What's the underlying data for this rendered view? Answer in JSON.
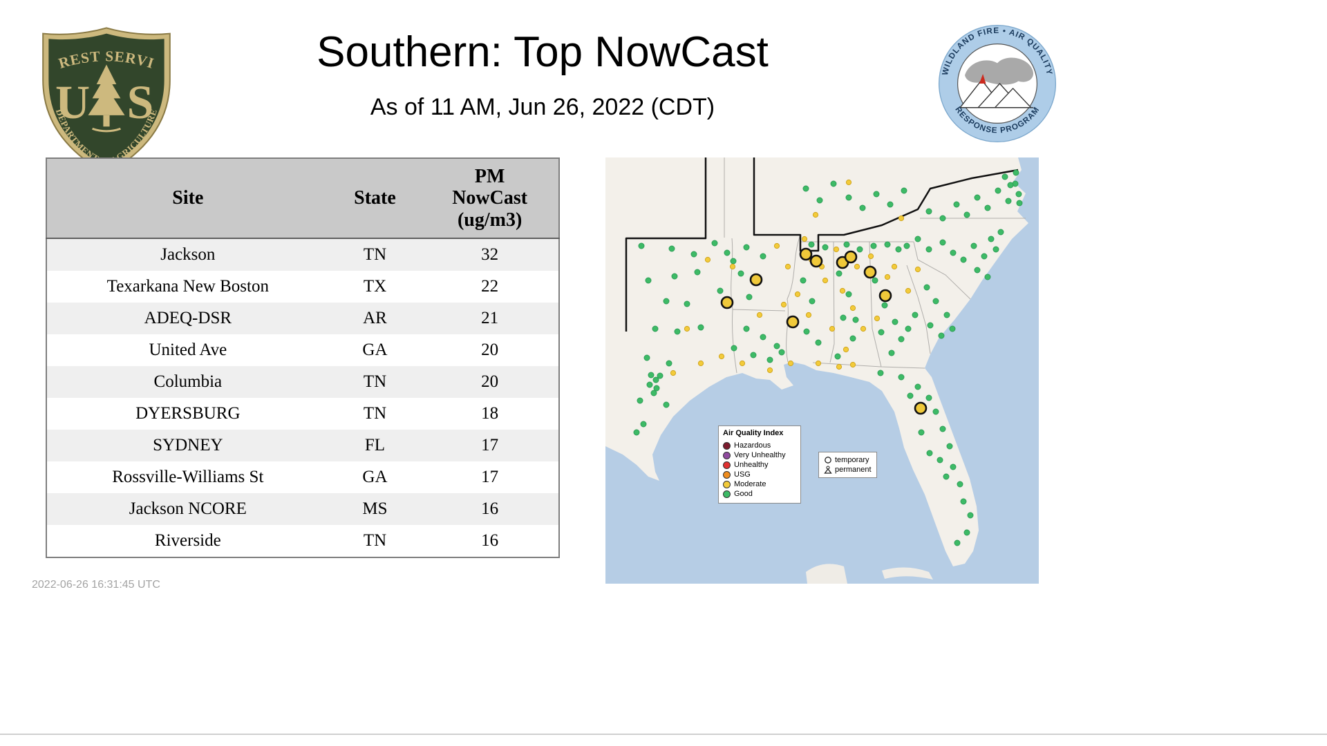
{
  "header": {
    "title": "Southern: Top NowCast",
    "subtitle": "As of 11 AM, Jun 26, 2022 (CDT)"
  },
  "logos": {
    "usfs": {
      "top_text": "FOREST SERVICE",
      "letter_left": "U",
      "letter_right": "S",
      "bottom_text": "DEPARTMENT OF AGRICULTURE"
    },
    "wfaqrp": {
      "top_text": "WILDLAND FIRE • AIR QUALITY",
      "bottom_text": "RESPONSE PROGRAM"
    }
  },
  "table": {
    "columns": [
      "Site",
      "State",
      "PM NowCast (ug/m3)"
    ],
    "rows": [
      {
        "site": "Jackson",
        "state": "TN",
        "value": "32"
      },
      {
        "site": "Texarkana New Boston",
        "state": "TX",
        "value": "22"
      },
      {
        "site": "ADEQ-DSR",
        "state": "AR",
        "value": "21"
      },
      {
        "site": "United Ave",
        "state": "GA",
        "value": "20"
      },
      {
        "site": "Columbia",
        "state": "TN",
        "value": "20"
      },
      {
        "site": "DYERSBURG",
        "state": "TN",
        "value": "18"
      },
      {
        "site": "SYDNEY",
        "state": "FL",
        "value": "17"
      },
      {
        "site": "Rossville-Williams St",
        "state": "GA",
        "value": "17"
      },
      {
        "site": "Jackson NCORE",
        "state": "MS",
        "value": "16"
      },
      {
        "site": "Riverside",
        "state": "TN",
        "value": "16"
      }
    ]
  },
  "footer": {
    "timestamp": "2022-06-26 16:31:45 UTC"
  },
  "map": {
    "legend": {
      "title": "Air Quality Index",
      "items": [
        {
          "label": "Hazardous",
          "color": "#7c1b2e"
        },
        {
          "label": "Very Unhealthy",
          "color": "#8f4a9e"
        },
        {
          "label": "Unhealthy",
          "color": "#e03131"
        },
        {
          "label": "USG",
          "color": "#ef8d1e"
        },
        {
          "label": "Moderate",
          "color": "#f3cb3a"
        },
        {
          "label": "Good",
          "color": "#3dba66"
        }
      ]
    },
    "marker_legend": {
      "temporary": "temporary",
      "permanent": "permanent"
    },
    "marker_colors": {
      "good": "#3dba66",
      "good_stroke": "#2f9e57",
      "moderate": "#f3cb3a",
      "moderate_stroke": "#cfa51f",
      "top_site": "#f0c93a",
      "top_site_stroke": "#111111"
    },
    "points": {
      "good": [
        [
          52,
          128
        ],
        [
          96,
          132
        ],
        [
          128,
          140
        ],
        [
          62,
          178
        ],
        [
          100,
          172
        ],
        [
          133,
          166
        ],
        [
          88,
          208
        ],
        [
          118,
          212
        ],
        [
          72,
          248
        ],
        [
          104,
          252
        ],
        [
          138,
          246
        ],
        [
          60,
          290
        ],
        [
          92,
          298
        ],
        [
          66,
          315
        ],
        [
          73,
          322
        ],
        [
          79,
          316
        ],
        [
          64,
          329
        ],
        [
          74,
          334
        ],
        [
          70,
          341
        ],
        [
          50,
          352
        ],
        [
          88,
          358
        ],
        [
          55,
          386
        ],
        [
          45,
          398
        ],
        [
          158,
          124
        ],
        [
          176,
          138
        ],
        [
          204,
          130
        ],
        [
          228,
          143
        ],
        [
          196,
          168
        ],
        [
          222,
          176
        ],
        [
          166,
          193
        ],
        [
          208,
          202
        ],
        [
          185,
          150
        ],
        [
          204,
          248
        ],
        [
          228,
          260
        ],
        [
          248,
          273
        ],
        [
          214,
          286
        ],
        [
          186,
          276
        ],
        [
          238,
          293
        ],
        [
          255,
          282
        ],
        [
          286,
          178
        ],
        [
          299,
          208
        ],
        [
          291,
          252
        ],
        [
          308,
          268
        ],
        [
          338,
          168
        ],
        [
          352,
          198
        ],
        [
          344,
          232
        ],
        [
          358,
          262
        ],
        [
          336,
          288
        ],
        [
          362,
          235
        ],
        [
          298,
          126
        ],
        [
          318,
          130
        ],
        [
          349,
          126
        ],
        [
          368,
          133
        ],
        [
          388,
          128
        ],
        [
          408,
          126
        ],
        [
          424,
          133
        ],
        [
          436,
          128
        ],
        [
          390,
          178
        ],
        [
          404,
          214
        ],
        [
          419,
          238
        ],
        [
          399,
          253
        ],
        [
          428,
          263
        ],
        [
          414,
          283
        ],
        [
          438,
          248
        ],
        [
          448,
          228
        ],
        [
          465,
          188
        ],
        [
          478,
          208
        ],
        [
          494,
          228
        ],
        [
          470,
          243
        ],
        [
          502,
          248
        ],
        [
          486,
          258
        ],
        [
          398,
          312
        ],
        [
          428,
          318
        ],
        [
          452,
          332
        ],
        [
          468,
          348
        ],
        [
          478,
          368
        ],
        [
          488,
          393
        ],
        [
          498,
          418
        ],
        [
          503,
          448
        ],
        [
          513,
          473
        ],
        [
          518,
          498
        ],
        [
          528,
          518
        ],
        [
          523,
          543
        ],
        [
          509,
          558
        ],
        [
          469,
          428
        ],
        [
          457,
          398
        ],
        [
          484,
          438
        ],
        [
          493,
          462
        ],
        [
          441,
          345
        ],
        [
          452,
          118
        ],
        [
          468,
          133
        ],
        [
          488,
          123
        ],
        [
          503,
          138
        ],
        [
          518,
          148
        ],
        [
          533,
          128
        ],
        [
          548,
          143
        ],
        [
          558,
          118
        ],
        [
          572,
          108
        ],
        [
          538,
          163
        ],
        [
          553,
          173
        ],
        [
          565,
          133
        ],
        [
          468,
          78
        ],
        [
          488,
          88
        ],
        [
          508,
          68
        ],
        [
          523,
          83
        ],
        [
          538,
          58
        ],
        [
          553,
          73
        ],
        [
          568,
          48
        ],
        [
          583,
          63
        ],
        [
          593,
          38
        ],
        [
          578,
          28
        ],
        [
          598,
          53
        ],
        [
          599,
          66
        ],
        [
          594,
          22
        ],
        [
          586,
          40
        ],
        [
          352,
          58
        ],
        [
          372,
          73
        ],
        [
          392,
          53
        ],
        [
          330,
          38
        ],
        [
          412,
          68
        ],
        [
          432,
          48
        ],
        [
          310,
          62
        ],
        [
          290,
          45
        ]
      ],
      "moderate": [
        [
          148,
          148
        ],
        [
          184,
          158
        ],
        [
          248,
          128
        ],
        [
          264,
          158
        ],
        [
          278,
          198
        ],
        [
          294,
          228
        ],
        [
          318,
          178
        ],
        [
          328,
          248
        ],
        [
          348,
          278
        ],
        [
          308,
          298
        ],
        [
          268,
          298
        ],
        [
          238,
          308
        ],
        [
          198,
          298
        ],
        [
          168,
          288
        ],
        [
          138,
          298
        ],
        [
          288,
          118
        ],
        [
          334,
          133
        ],
        [
          364,
          158
        ],
        [
          384,
          143
        ],
        [
          418,
          158
        ],
        [
          438,
          193
        ],
        [
          408,
          173
        ],
        [
          452,
          162
        ],
        [
          298,
          148
        ],
        [
          313,
          158
        ],
        [
          343,
          193
        ],
        [
          358,
          218
        ],
        [
          373,
          248
        ],
        [
          393,
          233
        ],
        [
          258,
          213
        ],
        [
          223,
          228
        ],
        [
          118,
          248
        ],
        [
          428,
          88
        ],
        [
          338,
          303
        ],
        [
          358,
          300
        ],
        [
          98,
          312
        ],
        [
          304,
          83
        ],
        [
          352,
          36
        ]
      ],
      "top_sites": [
        [
          290,
          140
        ],
        [
          305,
          150
        ],
        [
          343,
          152
        ],
        [
          355,
          144
        ],
        [
          383,
          166
        ],
        [
          405,
          200
        ],
        [
          218,
          177
        ],
        [
          176,
          210
        ],
        [
          271,
          238
        ],
        [
          456,
          363
        ]
      ]
    }
  }
}
